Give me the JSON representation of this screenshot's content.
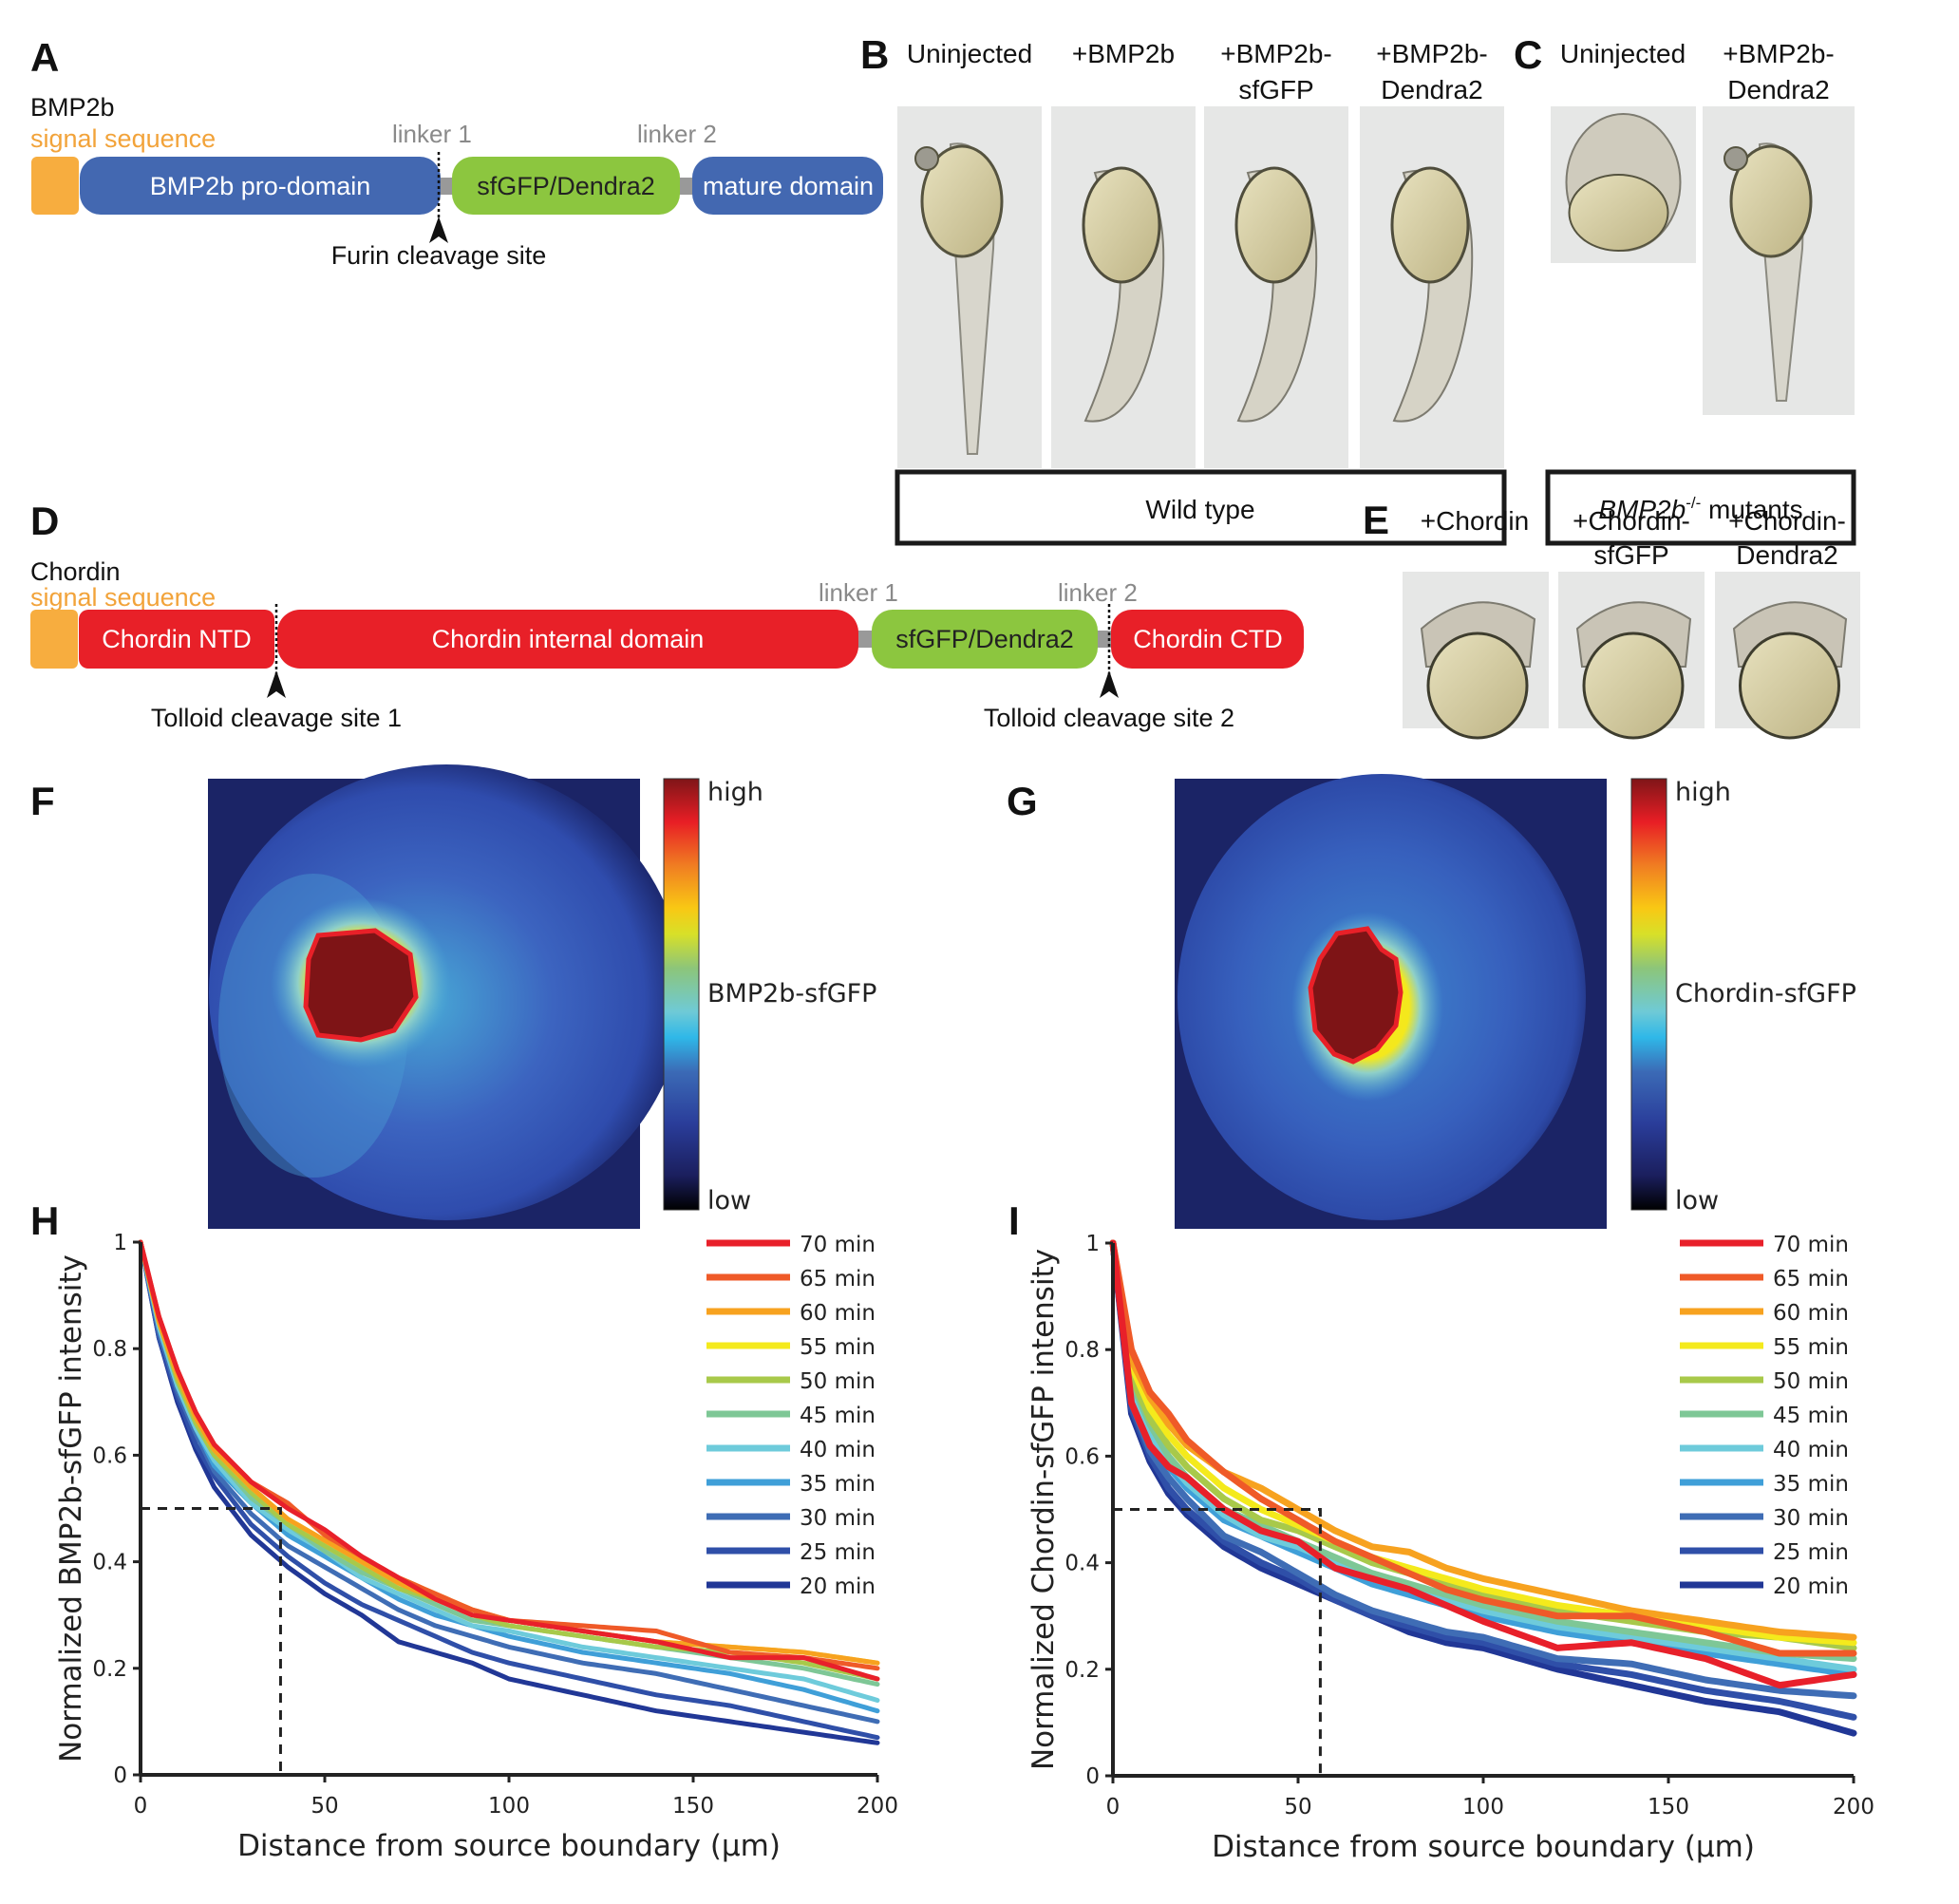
{
  "panels": {
    "A": {
      "letter": "A",
      "protein": "BMP2b",
      "signal_label": "signal sequence",
      "linker1": "linker 1",
      "linker2": "linker 2",
      "domains": [
        "BMP2b pro-domain",
        "sfGFP/Dendra2",
        "mature domain"
      ],
      "cleavage": "Furin cleavage site"
    },
    "B": {
      "letter": "B",
      "columns": [
        {
          "line1": "Uninjected",
          "line2": ""
        },
        {
          "line1": "+BMP2b",
          "line2": ""
        },
        {
          "line1": "+BMP2b-",
          "line2": "sfGFP"
        },
        {
          "line1": "+BMP2b-",
          "line2": "Dendra2"
        }
      ],
      "group_label": "Wild type"
    },
    "C": {
      "letter": "C",
      "columns": [
        {
          "line1": "Uninjected",
          "line2": ""
        },
        {
          "line1": "+BMP2b-",
          "line2": "Dendra2"
        }
      ],
      "group_label_italic": "BMP2b",
      "group_label_sup": "-/-",
      "group_label_rest": " mutants"
    },
    "D": {
      "letter": "D",
      "protein": "Chordin",
      "signal_label": "signal sequence",
      "linker1": "linker 1",
      "linker2": "linker 2",
      "domains": [
        "Chordin NTD",
        "Chordin internal domain",
        "sfGFP/Dendra2",
        "Chordin CTD"
      ],
      "cleavage1": "Tolloid cleavage site 1",
      "cleavage2": "Tolloid cleavage site 2"
    },
    "E": {
      "letter": "E",
      "columns": [
        {
          "line1": "+Chordin",
          "line2": ""
        },
        {
          "line1": "+Chordin-",
          "line2": "sfGFP"
        },
        {
          "line1": "+Chordin-",
          "line2": "Dendra2"
        }
      ]
    },
    "F": {
      "letter": "F",
      "colorbar_high": "high",
      "colorbar_low": "low",
      "colorbar_label": "BMP2b-sfGFP"
    },
    "G": {
      "letter": "G",
      "colorbar_high": "high",
      "colorbar_low": "low",
      "colorbar_label": "Chordin-sfGFP"
    },
    "H": {
      "letter": "H"
    },
    "I": {
      "letter": "I"
    }
  },
  "colors": {
    "signal": "#f7ad3f",
    "bmp_domain": "#4368b1",
    "chordin_domain": "#e82028",
    "fp_domain": "#8cc63f",
    "linker": "#999999",
    "series": {
      "70 min": "#e8202a",
      "65 min": "#ef5a28",
      "60 min": "#f7a21f",
      "55 min": "#f4ea1c",
      "50 min": "#a8c94a",
      "45 min": "#7ec796",
      "40 min": "#6ecbdb",
      "35 min": "#3f9fd8",
      "30 min": "#3f6db5",
      "25 min": "#2f4fa8",
      "20 min": "#213796"
    }
  },
  "chart_data": [
    {
      "id": "H",
      "type": "line",
      "xlabel": "Distance from source boundary (μm)",
      "ylabel": "Normalized BMP2b-sfGFP intensity",
      "xlim": [
        0,
        200
      ],
      "ylim": [
        0,
        1
      ],
      "xticks": [
        0,
        50,
        100,
        150,
        200
      ],
      "yticks": [
        0,
        0.2,
        0.4,
        0.6,
        0.8,
        1
      ],
      "ytick_labels": [
        "0",
        "0.2",
        "0.4",
        "0.6",
        "0.8",
        "1"
      ],
      "legend_position": "top-right",
      "annotation": {
        "type": "dashed-guide",
        "y": 0.5,
        "x": 38
      },
      "x": [
        0,
        5,
        10,
        15,
        20,
        30,
        40,
        50,
        60,
        70,
        80,
        90,
        100,
        120,
        140,
        160,
        180,
        200
      ],
      "series": [
        {
          "name": "70 min",
          "values": [
            1.0,
            0.86,
            0.76,
            0.68,
            0.62,
            0.55,
            0.5,
            0.46,
            0.41,
            0.37,
            0.33,
            0.3,
            0.29,
            0.27,
            0.25,
            0.22,
            0.22,
            0.18
          ]
        },
        {
          "name": "65 min",
          "values": [
            1.0,
            0.86,
            0.76,
            0.68,
            0.62,
            0.55,
            0.51,
            0.45,
            0.41,
            0.37,
            0.34,
            0.31,
            0.29,
            0.28,
            0.27,
            0.23,
            0.22,
            0.2
          ]
        },
        {
          "name": "60 min",
          "values": [
            1.0,
            0.85,
            0.75,
            0.67,
            0.61,
            0.54,
            0.48,
            0.44,
            0.4,
            0.36,
            0.33,
            0.31,
            0.29,
            0.27,
            0.25,
            0.24,
            0.23,
            0.21
          ]
        },
        {
          "name": "55 min",
          "values": [
            1.0,
            0.85,
            0.75,
            0.67,
            0.61,
            0.54,
            0.48,
            0.44,
            0.4,
            0.37,
            0.34,
            0.31,
            0.29,
            0.27,
            0.25,
            0.24,
            0.23,
            0.21
          ]
        },
        {
          "name": "50 min",
          "values": [
            1.0,
            0.85,
            0.74,
            0.66,
            0.6,
            0.53,
            0.47,
            0.43,
            0.39,
            0.35,
            0.33,
            0.3,
            0.28,
            0.26,
            0.24,
            0.23,
            0.21,
            0.18
          ]
        },
        {
          "name": "45 min",
          "values": [
            1.0,
            0.85,
            0.74,
            0.66,
            0.6,
            0.52,
            0.47,
            0.42,
            0.38,
            0.35,
            0.32,
            0.29,
            0.28,
            0.26,
            0.24,
            0.22,
            0.2,
            0.17
          ]
        },
        {
          "name": "40 min",
          "values": [
            1.0,
            0.84,
            0.73,
            0.65,
            0.59,
            0.51,
            0.46,
            0.42,
            0.37,
            0.34,
            0.31,
            0.28,
            0.27,
            0.24,
            0.22,
            0.2,
            0.18,
            0.14
          ]
        },
        {
          "name": "35 min",
          "values": [
            1.0,
            0.84,
            0.73,
            0.65,
            0.58,
            0.51,
            0.45,
            0.41,
            0.37,
            0.33,
            0.3,
            0.28,
            0.26,
            0.23,
            0.21,
            0.19,
            0.16,
            0.12
          ]
        },
        {
          "name": "30 min",
          "values": [
            1.0,
            0.83,
            0.72,
            0.64,
            0.57,
            0.49,
            0.43,
            0.39,
            0.35,
            0.31,
            0.28,
            0.26,
            0.24,
            0.21,
            0.19,
            0.16,
            0.13,
            0.1
          ]
        },
        {
          "name": "25 min",
          "values": [
            1.0,
            0.82,
            0.71,
            0.62,
            0.56,
            0.47,
            0.41,
            0.36,
            0.32,
            0.29,
            0.26,
            0.23,
            0.21,
            0.18,
            0.15,
            0.13,
            0.1,
            0.07
          ]
        },
        {
          "name": "20 min",
          "values": [
            1.0,
            0.82,
            0.7,
            0.61,
            0.54,
            0.45,
            0.39,
            0.34,
            0.3,
            0.25,
            0.23,
            0.21,
            0.18,
            0.15,
            0.12,
            0.1,
            0.08,
            0.06
          ]
        }
      ]
    },
    {
      "id": "I",
      "type": "line",
      "xlabel": "Distance from source boundary (μm)",
      "ylabel": "Normalized Chordin-sfGFP intensity",
      "xlim": [
        0,
        200
      ],
      "ylim": [
        0,
        1
      ],
      "xticks": [
        0,
        50,
        100,
        150,
        200
      ],
      "yticks": [
        0,
        0.2,
        0.4,
        0.6,
        0.8,
        1
      ],
      "ytick_labels": [
        "0",
        "0.2",
        "0.4",
        "0.6",
        "0.8",
        "1"
      ],
      "legend_position": "top-right",
      "annotation": {
        "type": "dashed-guide",
        "y": 0.5,
        "x": 56
      },
      "x": [
        0,
        5,
        10,
        15,
        20,
        30,
        40,
        50,
        60,
        70,
        80,
        90,
        100,
        120,
        140,
        160,
        180,
        200
      ],
      "series": [
        {
          "name": "70 min",
          "values": [
            1.0,
            0.7,
            0.62,
            0.58,
            0.56,
            0.5,
            0.46,
            0.44,
            0.39,
            0.37,
            0.35,
            0.32,
            0.29,
            0.24,
            0.25,
            0.22,
            0.17,
            0.19
          ]
        },
        {
          "name": "65 min",
          "values": [
            1.0,
            0.8,
            0.72,
            0.68,
            0.63,
            0.57,
            0.52,
            0.48,
            0.44,
            0.41,
            0.38,
            0.35,
            0.33,
            0.3,
            0.3,
            0.27,
            0.23,
            0.23
          ]
        },
        {
          "name": "60 min",
          "values": [
            1.0,
            0.78,
            0.71,
            0.66,
            0.62,
            0.57,
            0.54,
            0.5,
            0.46,
            0.43,
            0.42,
            0.39,
            0.37,
            0.34,
            0.31,
            0.29,
            0.27,
            0.26
          ]
        },
        {
          "name": "55 min",
          "values": [
            1.0,
            0.77,
            0.69,
            0.64,
            0.6,
            0.54,
            0.5,
            0.47,
            0.44,
            0.41,
            0.39,
            0.37,
            0.35,
            0.32,
            0.3,
            0.28,
            0.26,
            0.25
          ]
        },
        {
          "name": "50 min",
          "values": [
            1.0,
            0.75,
            0.67,
            0.62,
            0.58,
            0.52,
            0.48,
            0.46,
            0.43,
            0.4,
            0.38,
            0.36,
            0.34,
            0.31,
            0.29,
            0.27,
            0.26,
            0.24
          ]
        },
        {
          "name": "45 min",
          "values": [
            1.0,
            0.74,
            0.66,
            0.6,
            0.56,
            0.5,
            0.47,
            0.44,
            0.41,
            0.38,
            0.36,
            0.34,
            0.32,
            0.29,
            0.27,
            0.25,
            0.23,
            0.22
          ]
        },
        {
          "name": "40 min",
          "values": [
            1.0,
            0.73,
            0.64,
            0.59,
            0.55,
            0.49,
            0.45,
            0.43,
            0.4,
            0.37,
            0.35,
            0.33,
            0.31,
            0.28,
            0.26,
            0.24,
            0.22,
            0.2
          ]
        },
        {
          "name": "35 min",
          "values": [
            1.0,
            0.72,
            0.63,
            0.58,
            0.54,
            0.48,
            0.45,
            0.42,
            0.39,
            0.36,
            0.34,
            0.32,
            0.3,
            0.27,
            0.25,
            0.23,
            0.21,
            0.19
          ]
        },
        {
          "name": "30 min",
          "values": [
            1.0,
            0.7,
            0.61,
            0.56,
            0.52,
            0.45,
            0.42,
            0.38,
            0.34,
            0.31,
            0.29,
            0.27,
            0.26,
            0.22,
            0.21,
            0.18,
            0.16,
            0.15
          ]
        },
        {
          "name": "25 min",
          "values": [
            1.0,
            0.69,
            0.6,
            0.54,
            0.5,
            0.44,
            0.4,
            0.37,
            0.33,
            0.3,
            0.28,
            0.26,
            0.25,
            0.21,
            0.19,
            0.16,
            0.14,
            0.11
          ]
        },
        {
          "name": "20 min",
          "values": [
            1.0,
            0.68,
            0.59,
            0.53,
            0.49,
            0.43,
            0.39,
            0.36,
            0.33,
            0.3,
            0.27,
            0.25,
            0.24,
            0.2,
            0.17,
            0.14,
            0.12,
            0.08
          ]
        }
      ]
    }
  ]
}
